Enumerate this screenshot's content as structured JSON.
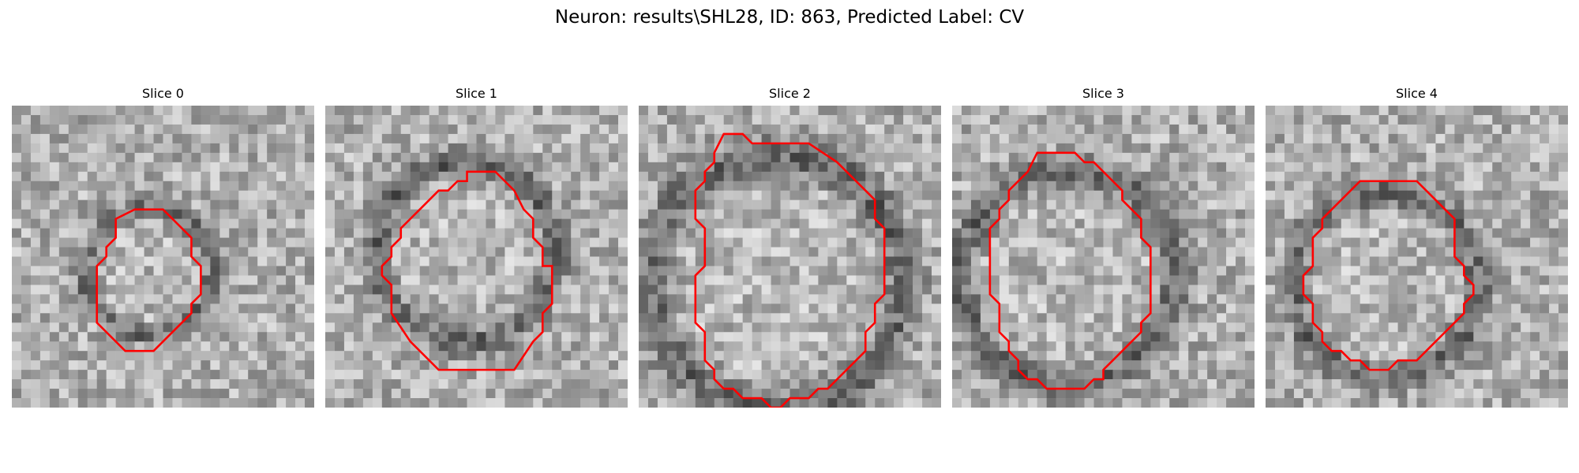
{
  "figure": {
    "title": "Neuron: results\\SHL28, ID: 863, Predicted Label: CV"
  },
  "panels": [
    {
      "title": "Slice 0",
      "contour": [
        [
          13,
          11
        ],
        [
          16,
          11
        ],
        [
          19,
          14
        ],
        [
          19,
          16
        ],
        [
          20,
          17
        ],
        [
          20,
          20
        ],
        [
          19,
          21
        ],
        [
          19,
          22
        ],
        [
          15,
          26
        ],
        [
          12,
          26
        ],
        [
          9,
          23
        ],
        [
          9,
          17
        ],
        [
          10,
          16
        ],
        [
          10,
          15
        ],
        [
          11,
          14
        ],
        [
          11,
          12
        ]
      ]
    },
    {
      "title": "Slice 1",
      "contour": [
        [
          15,
          7
        ],
        [
          18,
          7
        ],
        [
          20,
          9
        ],
        [
          21,
          11
        ],
        [
          22,
          12
        ],
        [
          22,
          14
        ],
        [
          23,
          15
        ],
        [
          23,
          17
        ],
        [
          24,
          17
        ],
        [
          24,
          21
        ],
        [
          23,
          22
        ],
        [
          23,
          24
        ],
        [
          22,
          25
        ],
        [
          20,
          28
        ],
        [
          12,
          28
        ],
        [
          9,
          25
        ],
        [
          7,
          22
        ],
        [
          7,
          19
        ],
        [
          6,
          18
        ],
        [
          6,
          17
        ],
        [
          7,
          16
        ],
        [
          7,
          15
        ],
        [
          8,
          14
        ],
        [
          8,
          13
        ],
        [
          9,
          12
        ],
        [
          10,
          11
        ],
        [
          11,
          10
        ],
        [
          12,
          9
        ],
        [
          13,
          9
        ],
        [
          14,
          8
        ],
        [
          15,
          8
        ]
      ]
    },
    {
      "title": "Slice 2",
      "contour": [
        [
          9,
          3
        ],
        [
          11,
          3
        ],
        [
          12,
          4
        ],
        [
          18,
          4
        ],
        [
          21,
          6
        ],
        [
          23,
          8
        ],
        [
          24,
          9
        ],
        [
          25,
          10
        ],
        [
          25,
          12
        ],
        [
          26,
          13
        ],
        [
          26,
          20
        ],
        [
          25,
          21
        ],
        [
          25,
          23
        ],
        [
          24,
          24
        ],
        [
          24,
          26
        ],
        [
          22,
          28
        ],
        [
          20,
          30
        ],
        [
          19,
          30
        ],
        [
          18,
          31
        ],
        [
          16,
          31
        ],
        [
          15,
          32
        ],
        [
          14,
          32
        ],
        [
          13,
          31
        ],
        [
          11,
          31
        ],
        [
          10,
          30
        ],
        [
          9,
          30
        ],
        [
          8,
          29
        ],
        [
          8,
          28
        ],
        [
          7,
          27
        ],
        [
          7,
          24
        ],
        [
          6,
          23
        ],
        [
          6,
          18
        ],
        [
          7,
          17
        ],
        [
          7,
          13
        ],
        [
          6,
          12
        ],
        [
          6,
          9
        ],
        [
          7,
          8
        ],
        [
          7,
          7
        ],
        [
          8,
          6
        ],
        [
          8,
          5
        ]
      ]
    },
    {
      "title": "Slice 3",
      "contour": [
        [
          9,
          5
        ],
        [
          13,
          5
        ],
        [
          14,
          6
        ],
        [
          15,
          6
        ],
        [
          17,
          8
        ],
        [
          18,
          9
        ],
        [
          18,
          10
        ],
        [
          19,
          11
        ],
        [
          20,
          12
        ],
        [
          20,
          14
        ],
        [
          21,
          15
        ],
        [
          21,
          22
        ],
        [
          20,
          23
        ],
        [
          20,
          24
        ],
        [
          19,
          25
        ],
        [
          18,
          26
        ],
        [
          17,
          27
        ],
        [
          16,
          28
        ],
        [
          16,
          29
        ],
        [
          15,
          29
        ],
        [
          14,
          30
        ],
        [
          10,
          30
        ],
        [
          9,
          29
        ],
        [
          8,
          29
        ],
        [
          7,
          28
        ],
        [
          7,
          27
        ],
        [
          6,
          26
        ],
        [
          6,
          25
        ],
        [
          5,
          24
        ],
        [
          5,
          21
        ],
        [
          4,
          20
        ],
        [
          4,
          13
        ],
        [
          5,
          12
        ],
        [
          5,
          11
        ],
        [
          6,
          10
        ],
        [
          6,
          9
        ],
        [
          7,
          8
        ],
        [
          8,
          7
        ]
      ]
    },
    {
      "title": "Slice 4",
      "contour": [
        [
          11,
          8
        ],
        [
          16,
          8
        ],
        [
          18,
          10
        ],
        [
          19,
          11
        ],
        [
          20,
          12
        ],
        [
          20,
          16
        ],
        [
          21,
          17
        ],
        [
          21,
          18
        ],
        [
          22,
          19
        ],
        [
          22,
          20
        ],
        [
          21,
          21
        ],
        [
          21,
          22
        ],
        [
          20,
          23
        ],
        [
          19,
          24
        ],
        [
          18,
          25
        ],
        [
          17,
          26
        ],
        [
          16,
          27
        ],
        [
          14,
          27
        ],
        [
          13,
          28
        ],
        [
          11,
          28
        ],
        [
          10,
          27
        ],
        [
          9,
          27
        ],
        [
          8,
          26
        ],
        [
          7,
          26
        ],
        [
          6,
          25
        ],
        [
          6,
          24
        ],
        [
          5,
          23
        ],
        [
          5,
          21
        ],
        [
          4,
          20
        ],
        [
          4,
          18
        ],
        [
          5,
          17
        ],
        [
          5,
          14
        ],
        [
          6,
          13
        ],
        [
          6,
          12
        ],
        [
          7,
          11
        ],
        [
          8,
          10
        ],
        [
          9,
          9
        ],
        [
          10,
          8
        ]
      ]
    }
  ]
}
